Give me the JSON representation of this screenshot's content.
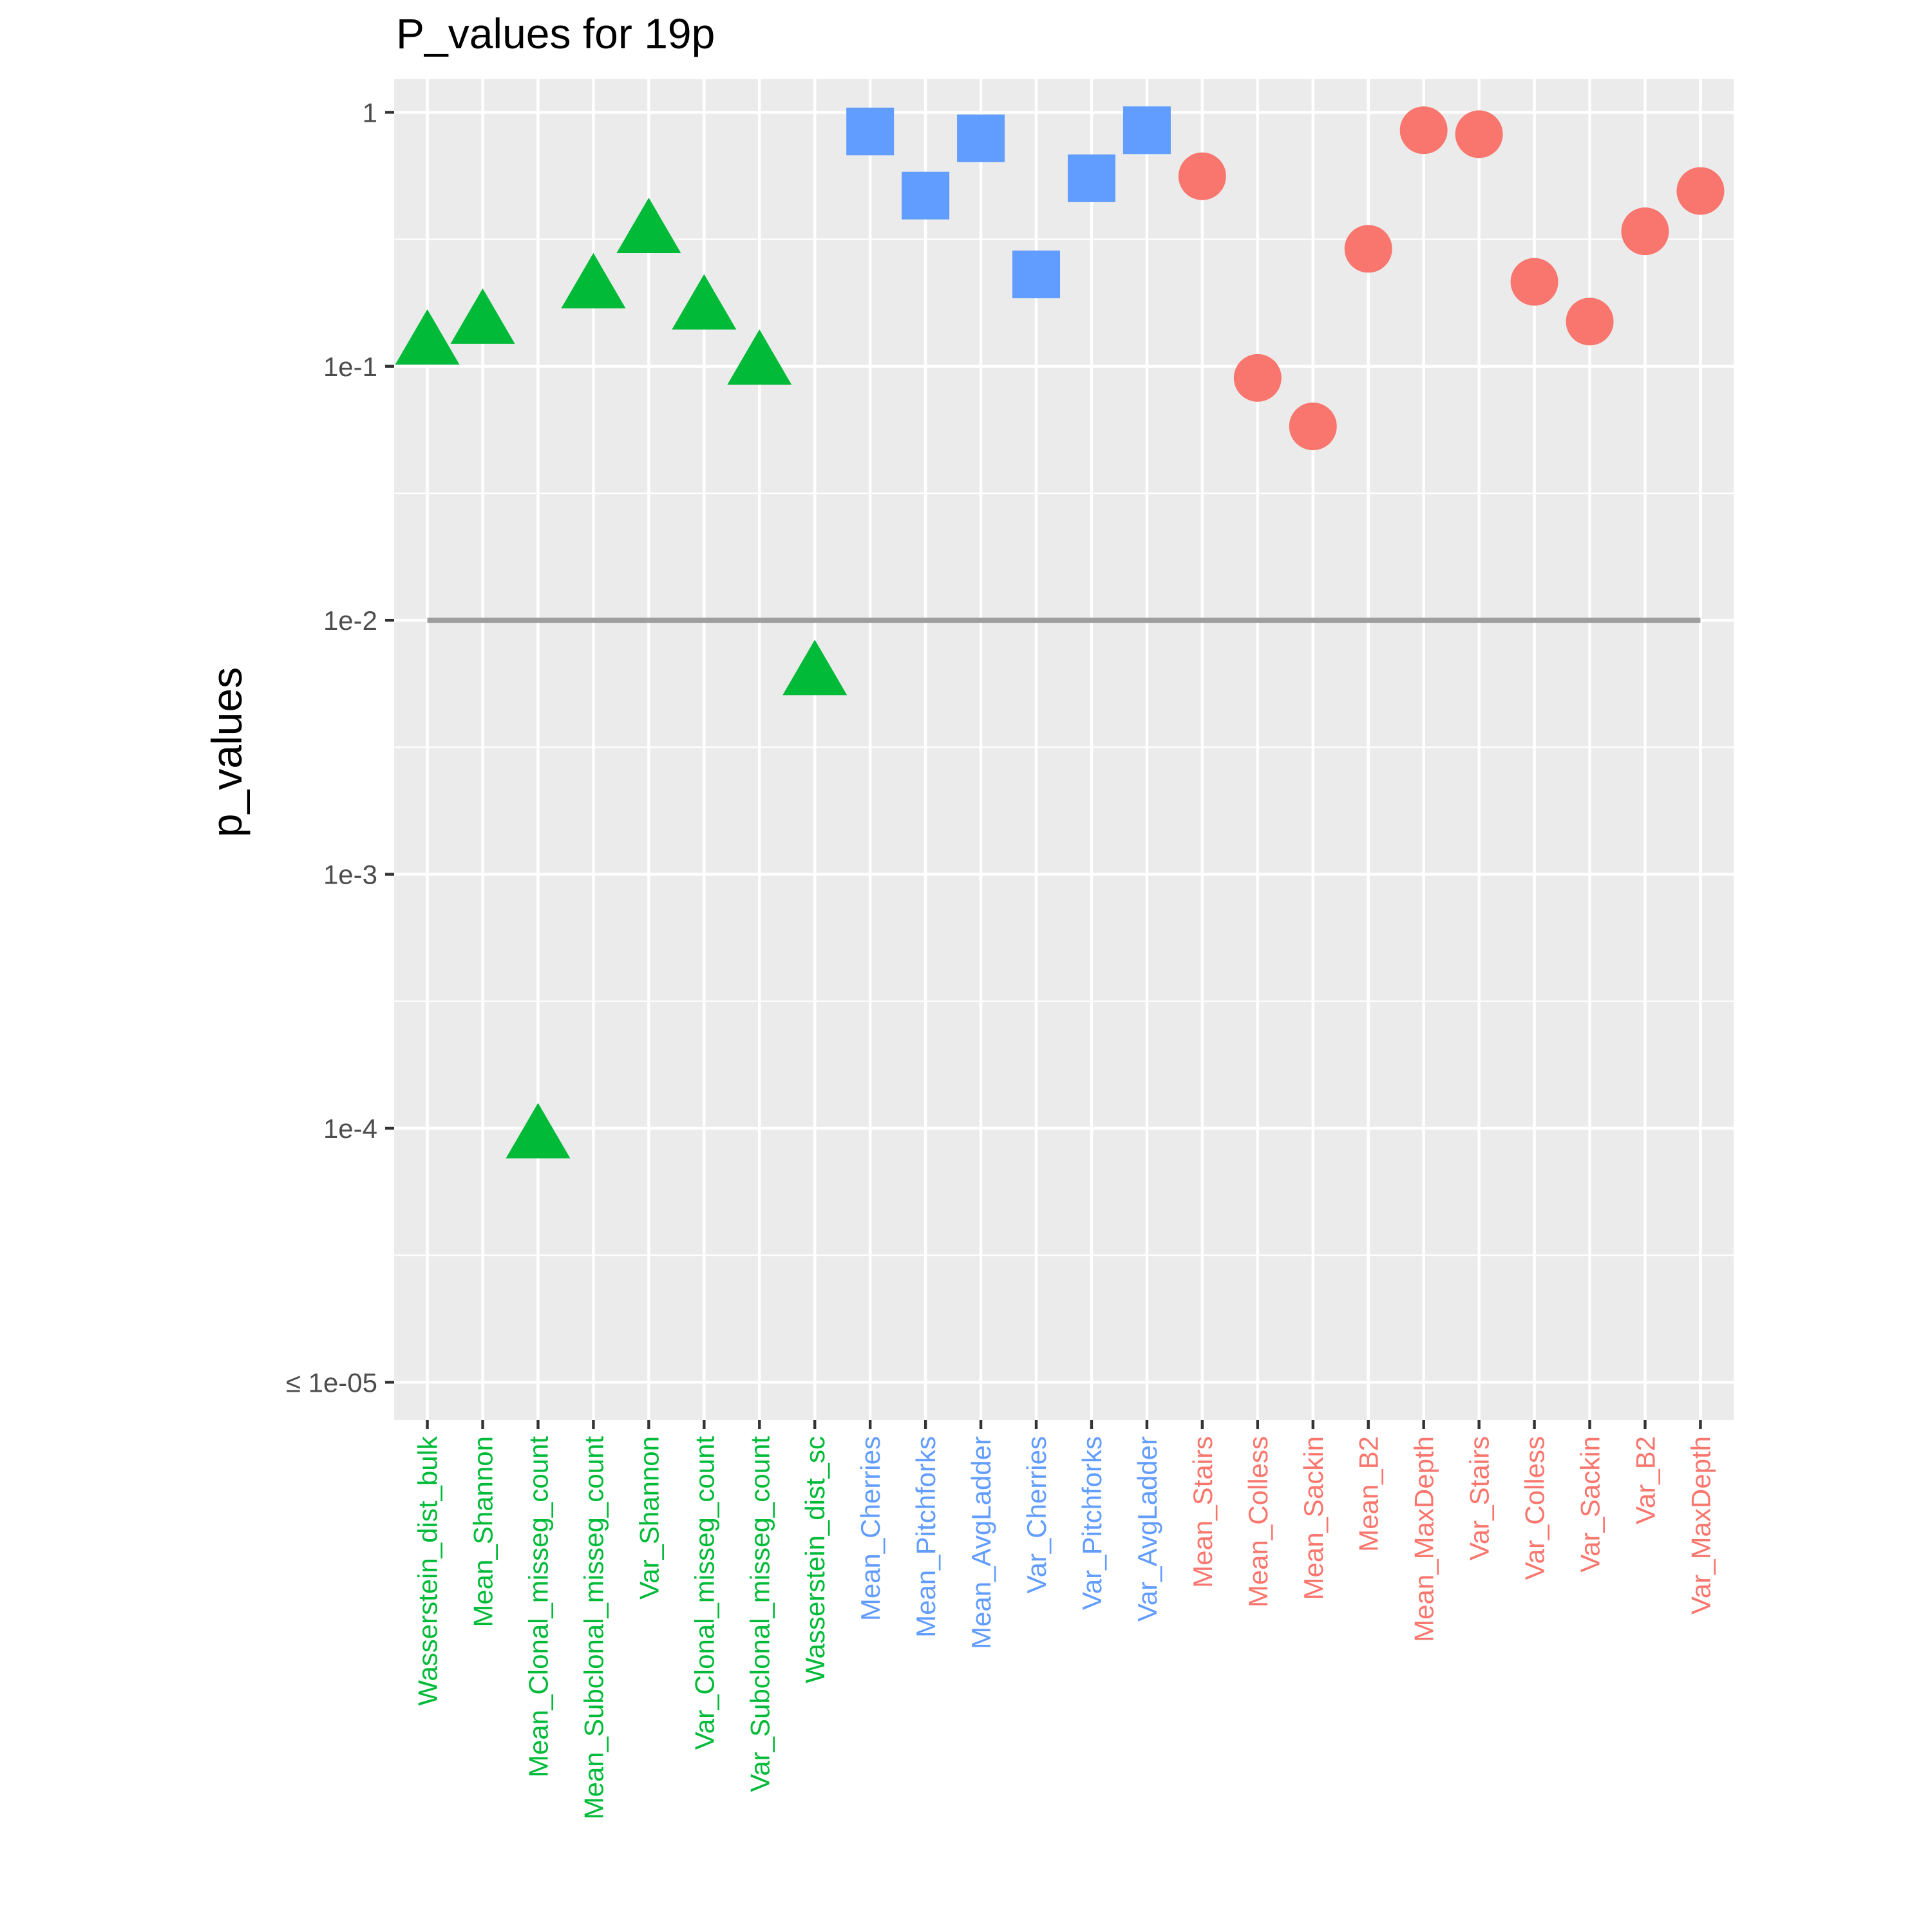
{
  "chart_data": {
    "type": "scatter",
    "title": "P_values for 19p",
    "xlabel": "",
    "ylabel": "p_values",
    "yscale": "log10",
    "ylim": [
      7.1e-06,
      1.35
    ],
    "y_ticks": [
      {
        "value": 1,
        "label": "1"
      },
      {
        "value": 0.1,
        "label": "1e-1"
      },
      {
        "value": 0.01,
        "label": "1e-2"
      },
      {
        "value": 0.001,
        "label": "1e-3"
      },
      {
        "value": 0.0001,
        "label": "1e-4"
      },
      {
        "value": 1e-05,
        "label": "≤ 1e-05"
      }
    ],
    "y_minor_ticks": [
      0.3162,
      0.03162,
      0.003162,
      0.0003162,
      3.162e-05
    ],
    "threshold": {
      "value": 0.01,
      "color": "#9e9e9e"
    },
    "grid": true,
    "legend": "none",
    "panel_background": "#ebebeb",
    "series": [
      {
        "group": "green",
        "marker": "triangle",
        "color": "#00ba38",
        "categories": [
          "Wasserstein_dist_bulk",
          "Mean_Shannon",
          "Mean_Clonal_misseg_count",
          "Mean_Subclonal_misseg_count",
          "Var_Shannon",
          "Var_Clonal_misseg_count",
          "Var_Subclonal_misseg_count",
          "Wasserstein_dist_sc"
        ],
        "values": [
          0.12,
          0.145,
          9e-05,
          0.2,
          0.33,
          0.165,
          0.1,
          0.006
        ]
      },
      {
        "group": "blue",
        "marker": "square",
        "color": "#619cff",
        "categories": [
          "Mean_Cherries",
          "Mean_Pitchforks",
          "Mean_AvgLadder",
          "Var_Cherries",
          "Var_Pitchforks",
          "Var_AvgLadder"
        ],
        "values": [
          0.84,
          0.47,
          0.79,
          0.23,
          0.55,
          0.85
        ]
      },
      {
        "group": "red",
        "marker": "circle",
        "color": "#f8766d",
        "categories": [
          "Mean_Stairs",
          "Mean_Colless",
          "Mean_Sackin",
          "Mean_B2",
          "Mean_MaxDepth",
          "Var_Stairs",
          "Var_Colless",
          "Var_Sackin",
          "Var_B2",
          "Var_MaxDepth"
        ],
        "values": [
          0.56,
          0.09,
          0.058,
          0.29,
          0.85,
          0.82,
          0.215,
          0.15,
          0.34,
          0.49
        ]
      }
    ]
  }
}
